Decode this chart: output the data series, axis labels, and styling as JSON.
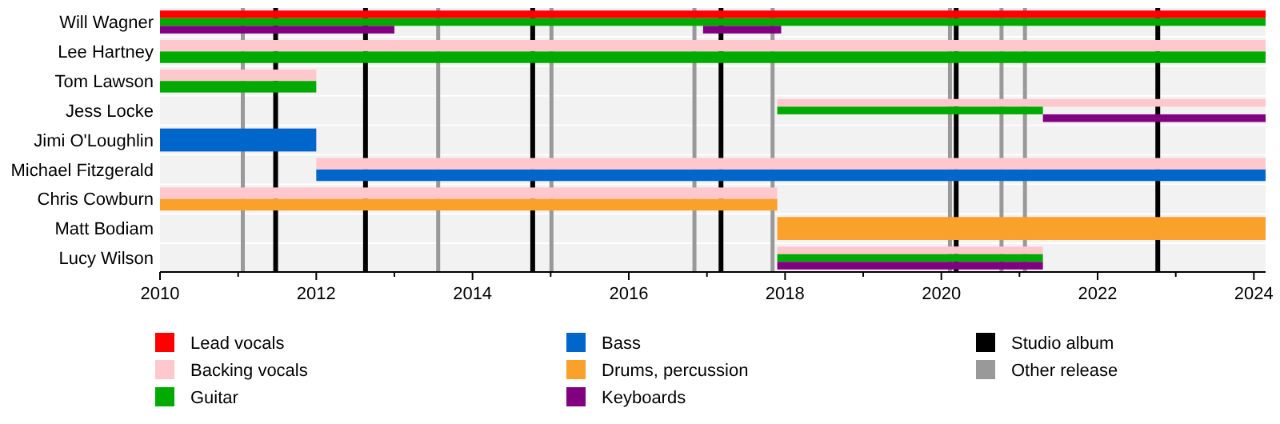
{
  "chart_data": {
    "type": "bar",
    "orientation": "horizontal",
    "categories": [
      "Will Wagner",
      "Lee Hartney",
      "Tom Lawson",
      "Jess Locke",
      "Jimi O'Loughlin",
      "Michael Fitzgerald",
      "Chris Cowburn",
      "Matt Bodiam",
      "Lucy Wilson"
    ],
    "series": [
      {
        "name": "Lead vocals",
        "color": "#ff0000",
        "base": [
          2010,
          null,
          null,
          null,
          null,
          null,
          null,
          null,
          null
        ],
        "values": [
          14.15,
          null,
          null,
          null,
          null,
          null,
          null,
          null,
          null
        ]
      },
      {
        "name": "Backing vocals",
        "color": "#ffc8cc",
        "base": [
          null,
          2010,
          2010,
          2017.9,
          null,
          2012,
          2010,
          null,
          2017.9
        ],
        "values": [
          null,
          14.15,
          2,
          6.25,
          null,
          12.15,
          7.9,
          null,
          3.4
        ]
      },
      {
        "name": "Guitar",
        "color": "#00aa00",
        "base": [
          2010,
          2010,
          2010,
          2017.9,
          null,
          null,
          null,
          null,
          2017.9
        ],
        "values": [
          14.15,
          14.15,
          2,
          3.4,
          null,
          null,
          null,
          null,
          3.4
        ]
      },
      {
        "name": "Bass",
        "color": "#0066cc",
        "base": [
          null,
          null,
          null,
          null,
          2010,
          2012,
          null,
          null,
          null
        ],
        "values": [
          null,
          null,
          null,
          null,
          2,
          12.15,
          null,
          null,
          null
        ]
      },
      {
        "name": "Drums, percussion",
        "color": "#f9a12b",
        "base": [
          null,
          null,
          null,
          null,
          null,
          null,
          2010,
          2017.9,
          null
        ],
        "values": [
          null,
          null,
          null,
          null,
          null,
          null,
          7.9,
          6.25,
          null
        ]
      },
      {
        "name": "Keyboards",
        "color": "#800080",
        "base": [
          2010,
          null,
          null,
          2021.3,
          null,
          null,
          null,
          null,
          2017.9
        ],
        "values": [
          3,
          null,
          null,
          2.85,
          null,
          null,
          null,
          null,
          3.4
        ]
      },
      {
        "color": "#800080",
        "base": [
          2016.95,
          null,
          null,
          null,
          null,
          null,
          null,
          null,
          null
        ],
        "values": [
          1,
          null,
          null,
          null,
          null,
          null,
          null,
          null,
          null
        ]
      }
    ],
    "xlim": [
      2010,
      2024.15
    ],
    "xticks": [
      2010,
      {
        "value": 2011,
        "label": null
      },
      2012,
      {
        "value": 2013,
        "label": null
      },
      2014,
      {
        "value": 2015,
        "label": null
      },
      2016,
      {
        "value": 2017,
        "label": null
      },
      2018,
      {
        "value": 2019,
        "label": null
      },
      2020,
      {
        "value": 2021,
        "label": null
      },
      2022,
      {
        "value": 2023,
        "label": null
      },
      2024
    ],
    "ref_lines": [
      {
        "axis": "x",
        "value": 2011.48,
        "label": "Studio album",
        "color": "#000000"
      },
      {
        "axis": "x",
        "value": 2012.63,
        "color": "#000000"
      },
      {
        "axis": "x",
        "value": 2014.77,
        "color": "#000000"
      },
      {
        "axis": "x",
        "value": 2017.18,
        "color": "#000000"
      },
      {
        "axis": "x",
        "value": 2020.19,
        "color": "#000000"
      },
      {
        "axis": "x",
        "value": 2022.77,
        "color": "#000000"
      },
      {
        "axis": "x",
        "value": 2011.06,
        "label": "Other release",
        "color": "#999999"
      },
      {
        "axis": "x",
        "value": 2013.56,
        "color": "#999999"
      },
      {
        "axis": "x",
        "value": 2015.01,
        "color": "#999999"
      },
      {
        "axis": "x",
        "value": 2016.84,
        "color": "#999999"
      },
      {
        "axis": "x",
        "value": 2017.84,
        "color": "#999999"
      },
      {
        "axis": "x",
        "value": 2020.11,
        "color": "#999999"
      },
      {
        "axis": "x",
        "value": 2020.77,
        "color": "#999999"
      },
      {
        "axis": "x",
        "value": 2021.07,
        "color": "#999999"
      }
    ],
    "legend": "bottom"
  }
}
